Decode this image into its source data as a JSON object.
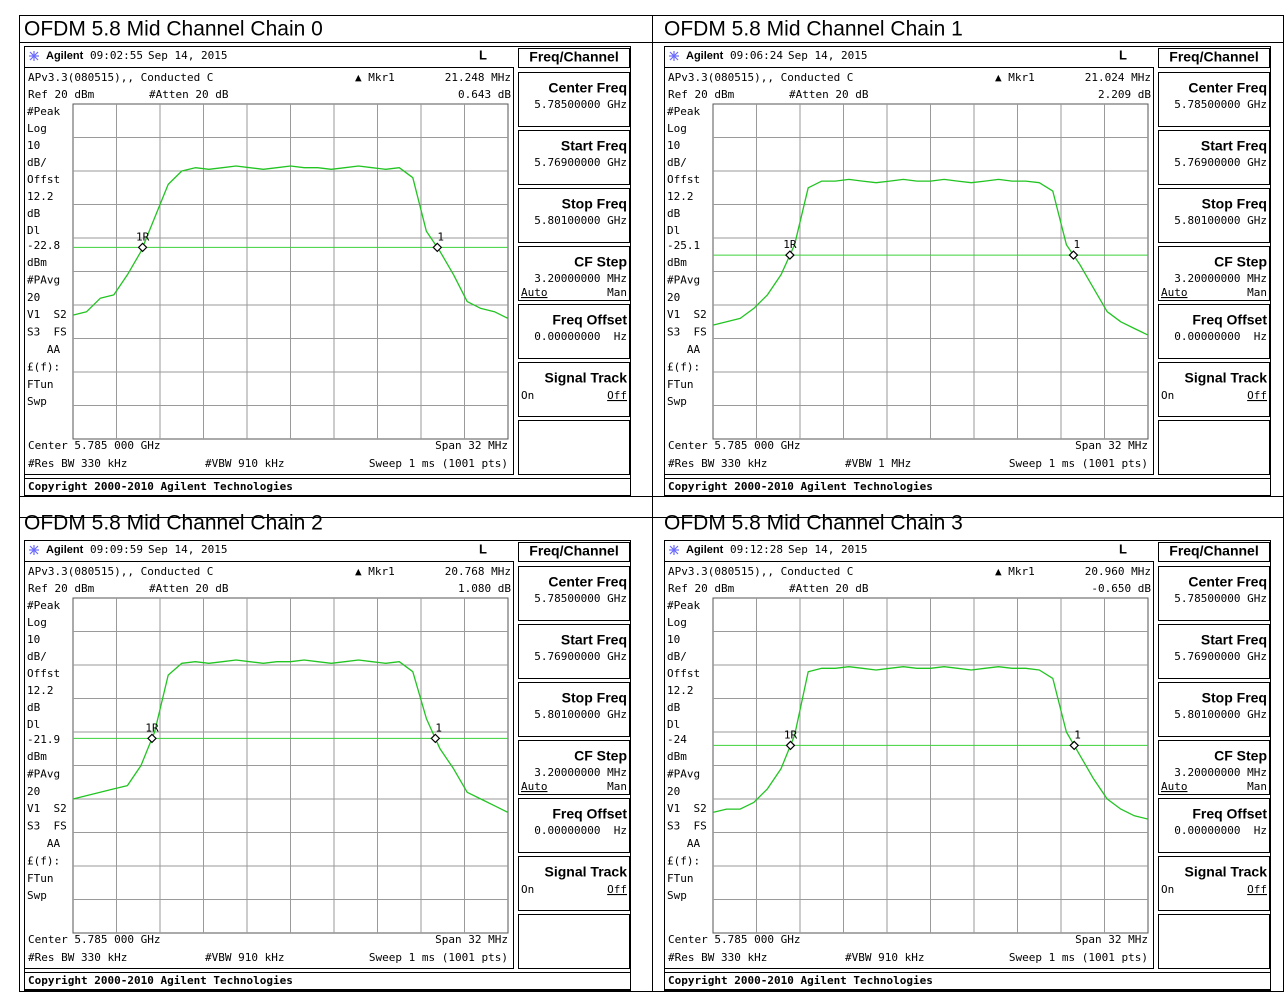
{
  "panels": [
    {
      "title": "OFDM 5.8 Mid Channel Chain 0",
      "header": {
        "brand": "Agilent",
        "time": "09:02:55",
        "date": "Sep 14, 2015",
        "mode": "L"
      },
      "menu_title": "Freq/Channel",
      "info": {
        "version": "APv3.3(080515),, Conducted C",
        "marker": "▲ Mkr1",
        "marker_freq": "21.248 MHz",
        "ref": "Ref 20 dBm",
        "atten": "#Atten 20 dB",
        "marker_level": "0.643 dB"
      },
      "side_labels_top": [
        "#Peak",
        "Log",
        10,
        "dB/",
        "Offst",
        12.2,
        "dB",
        "Dl"
      ],
      "display_line": -22.8,
      "side_labels_bottom": [
        "dBm",
        "#PAvg",
        20,
        "V1  S2",
        "S3  FS",
        "   AA",
        "£(f):",
        "FTun",
        "Swp"
      ],
      "markers": [
        "1R",
        "1"
      ],
      "footer": {
        "center": "Center 5.785 000 GHz",
        "span": "Span 32 MHz",
        "rbw": "#Res BW 330 kHz",
        "vbw": "#VBW 910 kHz",
        "sweep": "Sweep 1 ms (1001 pts)"
      },
      "copyright": "Copyright 2000-2010 Agilent Technologies",
      "softkeys": [
        {
          "title": "Center Freq",
          "value": "5.78500000 GHz"
        },
        {
          "title": "Start Freq",
          "value": "5.76900000 GHz"
        },
        {
          "title": "Stop Freq",
          "value": "5.80100000 GHz"
        },
        {
          "title": "CF Step",
          "value": "3.20000000 MHz",
          "options": [
            "Auto",
            "Man"
          ],
          "selected": 0
        },
        {
          "title": "Freq Offset",
          "value": "0.00000000  Hz"
        },
        {
          "title": "Signal Track",
          "options": [
            "On",
            "Off"
          ],
          "selected": 1
        }
      ],
      "trace": {
        "ylim": [
          -80,
          20
        ],
        "values": [
          -43,
          -42,
          -38,
          -37,
          -31,
          -24,
          -14,
          -4,
          0,
          1,
          0.5,
          1,
          1.5,
          1,
          0.5,
          1,
          1.5,
          1,
          1,
          0.5,
          1,
          1.5,
          1,
          0.5,
          1,
          -2,
          -18,
          -24,
          -31,
          -39,
          -41,
          -42,
          -44
        ]
      }
    },
    {
      "title": "OFDM 5.8 Mid Channel Chain 1",
      "header": {
        "brand": "Agilent",
        "time": "09:06:24",
        "date": "Sep 14, 2015",
        "mode": "L"
      },
      "menu_title": "Freq/Channel",
      "info": {
        "version": "APv3.3(080515),, Conducted C",
        "marker": "▲ Mkr1",
        "marker_freq": "21.024 MHz",
        "ref": "Ref 20 dBm",
        "atten": "#Atten 20 dB",
        "marker_level": "2.209 dB"
      },
      "side_labels_top": [
        "#Peak",
        "Log",
        10,
        "dB/",
        "Offst",
        12.2,
        "dB",
        "Dl"
      ],
      "display_line": -25.1,
      "side_labels_bottom": [
        "dBm",
        "#PAvg",
        20,
        "V1  S2",
        "S3  FS",
        "   AA",
        "£(f):",
        "FTun",
        "Swp"
      ],
      "markers": [
        "1R",
        "1"
      ],
      "footer": {
        "center": "Center 5.785 000 GHz",
        "span": "Span 32 MHz",
        "rbw": "#Res BW 330 kHz",
        "vbw": "#VBW 1 MHz",
        "sweep": "Sweep 1 ms (1001 pts)"
      },
      "copyright": "Copyright 2000-2010 Agilent Technologies",
      "softkeys": [
        {
          "title": "Center Freq",
          "value": "5.78500000 GHz"
        },
        {
          "title": "Start Freq",
          "value": "5.76900000 GHz"
        },
        {
          "title": "Stop Freq",
          "value": "5.80100000 GHz"
        },
        {
          "title": "CF Step",
          "value": "3.20000000 MHz",
          "options": [
            "Auto",
            "Man"
          ],
          "selected": 0
        },
        {
          "title": "Freq Offset",
          "value": "0.00000000  Hz"
        },
        {
          "title": "Signal Track",
          "options": [
            "On",
            "Off"
          ],
          "selected": 1
        }
      ],
      "trace": {
        "ylim": [
          -80,
          20
        ],
        "values": [
          -46,
          -45,
          -44,
          -41,
          -37,
          -31,
          -22,
          -5,
          -3,
          -3,
          -2.5,
          -3,
          -3.5,
          -3,
          -2.5,
          -3,
          -3,
          -2.5,
          -3,
          -3.5,
          -3,
          -2.5,
          -3,
          -3,
          -3.5,
          -6,
          -22,
          -28,
          -35,
          -42,
          -45,
          -47,
          -49
        ]
      }
    },
    {
      "title": "OFDM 5.8 Mid Channel Chain 2",
      "header": {
        "brand": "Agilent",
        "time": "09:09:59",
        "date": "Sep 14, 2015",
        "mode": "L"
      },
      "menu_title": "Freq/Channel",
      "info": {
        "version": "APv3.3(080515),, Conducted C",
        "marker": "▲ Mkr1",
        "marker_freq": "20.768 MHz",
        "ref": "Ref 20 dBm",
        "atten": "#Atten 20 dB",
        "marker_level": "1.080 dB"
      },
      "side_labels_top": [
        "#Peak",
        "Log",
        10,
        "dB/",
        "Offst",
        12.2,
        "dB",
        "Dl"
      ],
      "display_line": -21.9,
      "side_labels_bottom": [
        "dBm",
        "#PAvg",
        20,
        "V1  S2",
        "S3  FS",
        "   AA",
        "£(f):",
        "FTun",
        "Swp"
      ],
      "markers": [
        "1R",
        "1"
      ],
      "footer": {
        "center": "Center 5.785 000 GHz",
        "span": "Span 32 MHz",
        "rbw": "#Res BW 330 kHz",
        "vbw": "#VBW 910 kHz",
        "sweep": "Sweep 1 ms (1001 pts)"
      },
      "copyright": "Copyright 2000-2010 Agilent Technologies",
      "softkeys": [
        {
          "title": "Center Freq",
          "value": "5.78500000 GHz"
        },
        {
          "title": "Start Freq",
          "value": "5.76900000 GHz"
        },
        {
          "title": "Stop Freq",
          "value": "5.80100000 GHz"
        },
        {
          "title": "CF Step",
          "value": "3.20000000 MHz",
          "options": [
            "Auto",
            "Man"
          ],
          "selected": 0
        },
        {
          "title": "Freq Offset",
          "value": "0.00000000  Hz"
        },
        {
          "title": "Signal Track",
          "options": [
            "On",
            "Off"
          ],
          "selected": 1
        }
      ],
      "trace": {
        "ylim": [
          -80,
          20
        ],
        "values": [
          -40,
          -39,
          -38,
          -37,
          -36,
          -30,
          -20,
          -3,
          0.5,
          1,
          0.5,
          1,
          1.5,
          1,
          0.5,
          1,
          1,
          1.5,
          1,
          0.5,
          1,
          1.5,
          1,
          0.5,
          1,
          -2,
          -16,
          -25,
          -31,
          -38,
          -40,
          -42,
          -44
        ]
      }
    },
    {
      "title": "OFDM 5.8 Mid Channel Chain 3",
      "header": {
        "brand": "Agilent",
        "time": "09:12:28",
        "date": "Sep 14, 2015",
        "mode": "L"
      },
      "menu_title": "Freq/Channel",
      "info": {
        "version": "APv3.3(080515),, Conducted C",
        "marker": "▲ Mkr1",
        "marker_freq": "20.960 MHz",
        "ref": "Ref 20 dBm",
        "atten": "#Atten 20 dB",
        "marker_level": "-0.650 dB"
      },
      "side_labels_top": [
        "#Peak",
        "Log",
        10,
        "dB/",
        "Offst",
        12.2,
        "dB",
        "Dl"
      ],
      "display_line": -24.0,
      "side_labels_bottom": [
        "dBm",
        "#PAvg",
        20,
        "V1  S2",
        "S3  FS",
        "   AA",
        "£(f):",
        "FTun",
        "Swp"
      ],
      "markers": [
        "1R",
        "1"
      ],
      "footer": {
        "center": "Center 5.785 000 GHz",
        "span": "Span 32 MHz",
        "rbw": "#Res BW 330 kHz",
        "vbw": "#VBW 910 kHz",
        "sweep": "Sweep 1 ms (1001 pts)"
      },
      "copyright": "Copyright 2000-2010 Agilent Technologies",
      "softkeys": [
        {
          "title": "Center Freq",
          "value": "5.78500000 GHz"
        },
        {
          "title": "Start Freq",
          "value": "5.76900000 GHz"
        },
        {
          "title": "Stop Freq",
          "value": "5.80100000 GHz"
        },
        {
          "title": "CF Step",
          "value": "3.20000000 MHz",
          "options": [
            "Auto",
            "Man"
          ],
          "selected": 0
        },
        {
          "title": "Freq Offset",
          "value": "0.00000000  Hz"
        },
        {
          "title": "Signal Track",
          "options": [
            "On",
            "Off"
          ],
          "selected": 1
        }
      ],
      "trace": {
        "ylim": [
          -80,
          20
        ],
        "values": [
          -44,
          -43,
          -43,
          -41,
          -37,
          -31,
          -21,
          -2,
          -1,
          -1,
          -0.5,
          -1,
          -1.5,
          -1,
          -0.5,
          -1,
          -1,
          -0.5,
          -1,
          -1.5,
          -1,
          -0.5,
          -1,
          -1,
          -1.5,
          -4,
          -20,
          -27,
          -34,
          -40,
          -43,
          -45,
          -46
        ]
      }
    }
  ]
}
